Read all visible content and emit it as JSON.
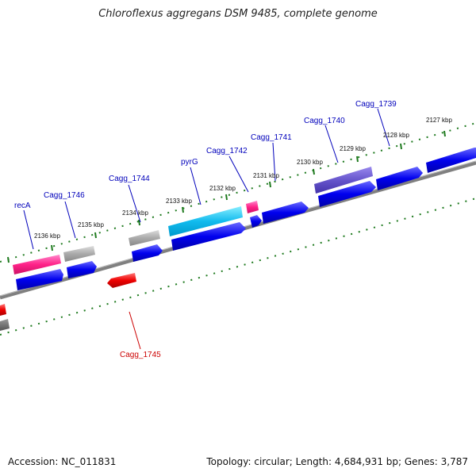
{
  "title": "Chloroflexus aggregans DSM 9485, complete genome",
  "footer": {
    "accession": "Accession: NC_011831",
    "meta": "Topology: circular; Length: 4,684,931 bp; Genes: 3,787"
  },
  "colors": {
    "backbone": "#808080",
    "ticks": "#1e7a1e",
    "forward_gene": "#0000ee",
    "label_forward": "#0000bb",
    "label_reverse": "#cc0000"
  },
  "ticks": [
    "2136 kbp",
    "2135 kbp",
    "2134 kbp",
    "2133 kbp",
    "2132 kbp",
    "2131 kbp",
    "2130 kbp",
    "2129 kbp",
    "2128 kbp",
    "2127 kbp"
  ],
  "gene_labels": [
    {
      "text": "recA",
      "color": "#0000bb"
    },
    {
      "text": "Cagg_1746",
      "color": "#0000bb"
    },
    {
      "text": "Cagg_1744",
      "color": "#0000bb"
    },
    {
      "text": "pyrG",
      "color": "#0000bb"
    },
    {
      "text": "Cagg_1742",
      "color": "#0000bb"
    },
    {
      "text": "Cagg_1741",
      "color": "#0000bb"
    },
    {
      "text": "Cagg_1740",
      "color": "#0000bb"
    },
    {
      "text": "Cagg_1739",
      "color": "#0000bb"
    },
    {
      "text": "Cagg_1745",
      "color": "#cc0000"
    }
  ],
  "feature_tracks": [
    {
      "name": "recA",
      "color": "#ff2288"
    },
    {
      "name": "Cagg_1746",
      "color": "#aaaaaa"
    },
    {
      "name": "Cagg_1744",
      "color": "#aaaaaa"
    },
    {
      "name": "pyrG",
      "color": "#11bbee"
    },
    {
      "name": "Cagg_1742",
      "color": "#ff2288"
    },
    {
      "name": "Cagg_1740",
      "color": "#6655cc"
    }
  ]
}
